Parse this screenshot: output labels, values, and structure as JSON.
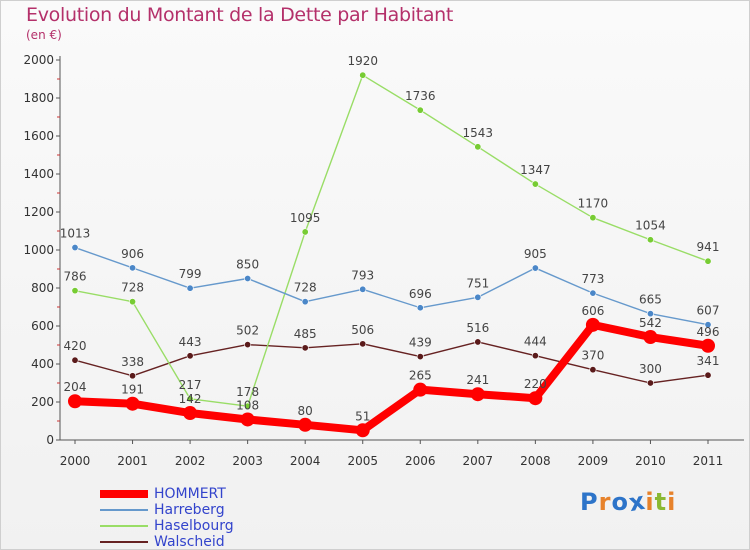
{
  "title": "Evolution du Montant de la Dette par Habitant",
  "subtitle": "(en €)",
  "logo": {
    "text": "Proxiti",
    "letters": [
      "P",
      "r",
      "o",
      "x",
      "i",
      "t",
      "i"
    ],
    "colors": [
      "#2d74c9",
      "#e7822b",
      "#2d74c9",
      "#2d74c9",
      "#e7822b",
      "#8ab832",
      "#e7822b"
    ]
  },
  "chart_data": {
    "type": "line",
    "title": "Evolution du Montant de la Dette par Habitant",
    "ylabel": "(en €)",
    "xlabel": "",
    "x": [
      "2000",
      "2001",
      "2002",
      "2003",
      "2004",
      "2005",
      "2006",
      "2007",
      "2008",
      "2009",
      "2010",
      "2011"
    ],
    "ylim": [
      0,
      2000
    ],
    "yticks": [
      0,
      200,
      400,
      600,
      800,
      1000,
      1200,
      1400,
      1600,
      1800,
      2000
    ],
    "grid": false,
    "legend_position": "bottom-left",
    "series": [
      {
        "name": "HOMMERT",
        "color": "#ff0000",
        "values": [
          204,
          191,
          142,
          108,
          80,
          51,
          265,
          241,
          220,
          606,
          542,
          496
        ]
      },
      {
        "name": "Harreberg",
        "color": "#6699cc",
        "values": [
          1013,
          906,
          799,
          850,
          728,
          793,
          696,
          751,
          905,
          773,
          665,
          607
        ]
      },
      {
        "name": "Haselbourg",
        "color": "#99dd66",
        "values": [
          786,
          728,
          217,
          178,
          1095,
          1920,
          1736,
          1543,
          1347,
          1170,
          1054,
          941
        ]
      },
      {
        "name": "Walscheid",
        "color": "#662222",
        "values": [
          420,
          338,
          443,
          502,
          485,
          506,
          439,
          516,
          444,
          370,
          300,
          341
        ]
      }
    ]
  }
}
